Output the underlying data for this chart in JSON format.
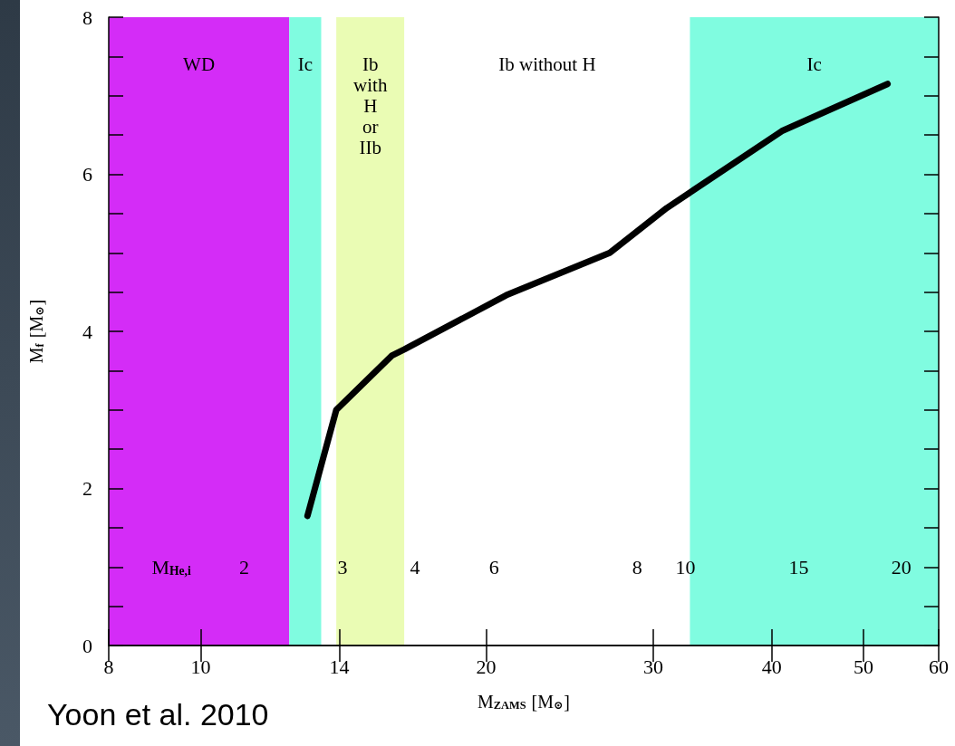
{
  "chart_data": {
    "type": "line",
    "xlabel": "M$_{ZAMS}$ [M$_{⊙}$]",
    "ylabel": "M$_{f}$ [M$_{⊙}$]",
    "log": "x",
    "xlim": [
      8,
      60
    ],
    "xticks": [
      8,
      10,
      14,
      20,
      30,
      40,
      50,
      60
    ],
    "ylim": [
      0,
      8
    ],
    "yticks": [
      0,
      {
        "value": 0.5,
        "label": null
      },
      {
        "value": 1,
        "label": null
      },
      {
        "value": 1.5,
        "label": null
      },
      2,
      {
        "value": 2.5,
        "label": null
      },
      {
        "value": 3,
        "label": null
      },
      {
        "value": 3.5,
        "label": null
      },
      4,
      {
        "value": 4.5,
        "label": null
      },
      {
        "value": 5,
        "label": null
      },
      {
        "value": 5.5,
        "label": null
      },
      6,
      {
        "value": 6.5,
        "label": null
      },
      {
        "value": 7,
        "label": null
      },
      {
        "value": 7.5,
        "label": null
      },
      8
    ],
    "grid": false,
    "marker": "none",
    "line_style": "solid",
    "series": [
      {
        "color": "#000000",
        "x": [
          12.96,
          13.9,
          15.9,
          16.4,
          21,
          27,
          31,
          41,
          53
        ],
        "values": [
          1.65,
          3.0,
          3.69,
          3.77,
          4.46,
          5.0,
          5.57,
          6.55,
          7.15
        ]
      }
    ],
    "bands": [
      {
        "axis": "x",
        "from": 8,
        "to": 12.4,
        "label": "WD",
        "color": "#d42cf7"
      },
      {
        "axis": "x",
        "from": 12.4,
        "to": 13.4,
        "label": "Ic",
        "color": "#80fce0"
      },
      {
        "axis": "x",
        "from": 13.9,
        "to": 16.4,
        "label": "Ib\nwith\nH\nor\nIIb",
        "color": "#eafcb4"
      },
      {
        "axis": "x",
        "from": 16.4,
        "to": 32.8,
        "label": "Ib without H",
        "color": "#ffffff"
      },
      {
        "axis": "x",
        "from": 32.8,
        "to": 60,
        "label": "Ic",
        "color": "#80fce0"
      }
    ],
    "annotations": [
      "M$_{He,i}$",
      "2",
      "3",
      "4",
      "6",
      "8",
      "10",
      "15",
      "20",
      "Yoon et al. 2010"
    ]
  }
}
